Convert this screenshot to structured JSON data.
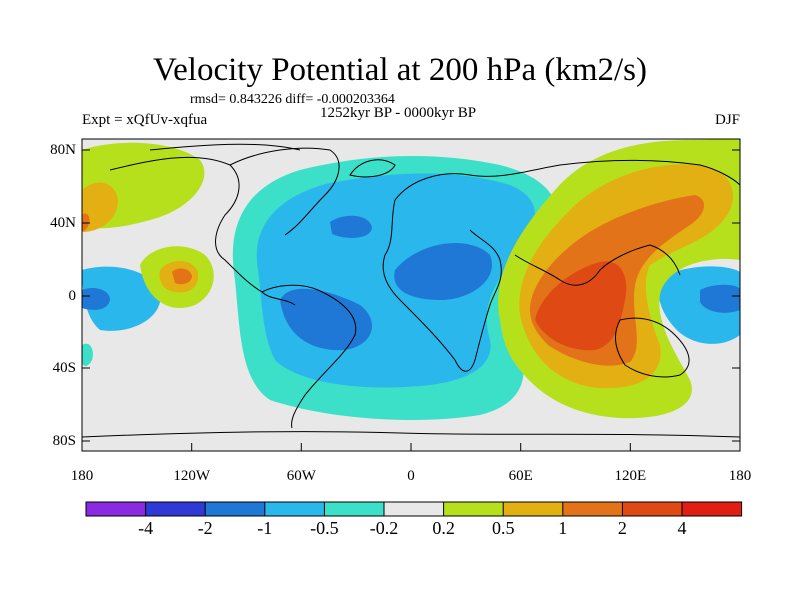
{
  "title": "Velocity Potential at 200 hPa (km2/s)",
  "stats": "rmsd= 0.843226 diff= -0.000203364",
  "experiment": "Expt = xQfUv-xqfua",
  "period": "1252kyr BP - 0000kyr BP",
  "season": "DJF",
  "map": {
    "lat_ticks": [
      "80N",
      "40N",
      "0",
      "40S",
      "80S"
    ],
    "lon_ticks": [
      "180",
      "120W",
      "60W",
      "0",
      "60E",
      "120E",
      "180"
    ],
    "background_color": "#e8e8e8"
  },
  "colorbar": {
    "labels": [
      "-4",
      "-2",
      "-1",
      "-0.5",
      "-0.2",
      "0.2",
      "0.5",
      "1",
      "2",
      "4"
    ],
    "colors": [
      "#8a2be2",
      "#2f3ad6",
      "#1f78d6",
      "#2ab8ec",
      "#3ce0c8",
      "#e8e8e8",
      "#b6e01c",
      "#e2b012",
      "#e27318",
      "#df4a14",
      "#e01e14"
    ]
  }
}
